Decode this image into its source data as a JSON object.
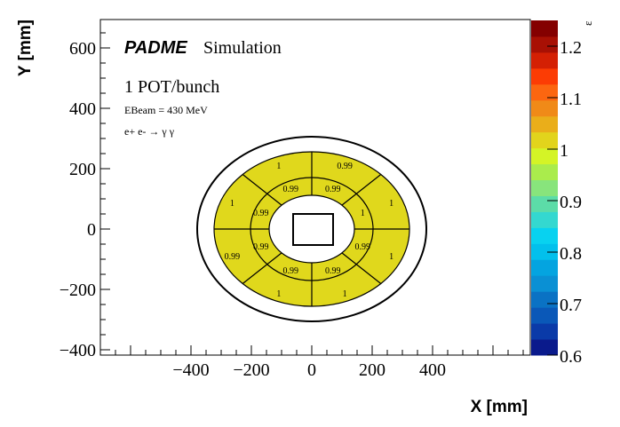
{
  "chart_data": {
    "type": "heatmap",
    "title": "PADME Simulation",
    "brand": "PADME",
    "subtitle": "Simulation",
    "annotations": [
      "1 POT/bunch",
      "EBeam = 430 MeV",
      "e+ e- → γ γ"
    ],
    "xlabel": "X [mm]",
    "ylabel": "Y [mm]",
    "zlabel": "ε",
    "xlim": [
      -700,
      710
    ],
    "ylim": [
      -420,
      700
    ],
    "zlim": [
      0.6,
      1.25
    ],
    "xticks": [
      "−400",
      "−200",
      "0",
      "200",
      "400"
    ],
    "xtick_values": [
      -400,
      -200,
      0,
      200,
      400
    ],
    "yticks": [
      "−400",
      "−200",
      "0",
      "200",
      "400",
      "600"
    ],
    "ytick_values": [
      -400,
      -200,
      0,
      200,
      400,
      600
    ],
    "zticks": [
      "0.6",
      "0.7",
      "0.8",
      "0.9",
      "1",
      "1.1",
      "1.2"
    ],
    "ztick_values": [
      0.6,
      0.7,
      0.8,
      0.9,
      1.0,
      1.1,
      1.2
    ],
    "palette": [
      "#0a1a8c",
      "#0a3aa8",
      "#0a58b8",
      "#0a72c4",
      "#0a90d4",
      "#04a4e0",
      "#02c0ec",
      "#08d2f0",
      "#34d8d0",
      "#5cdca8",
      "#88e47c",
      "#aaec4c",
      "#d4f426",
      "#e2d41c",
      "#eaae1a",
      "#f08a18",
      "#fc6610",
      "#fc3c04",
      "#d42004",
      "#a81004",
      "#840000"
    ],
    "outer_ring": {
      "sectors_from_top_left_clockwise": [
        "1",
        "0.99",
        "1",
        "1",
        "1",
        "1",
        "0.99",
        "1"
      ]
    },
    "inner_ring": {
      "sectors_from_top_left_clockwise": [
        "0.99",
        "0.99",
        "1",
        "0.99",
        "0.99",
        "0.99",
        "0.99",
        "0.99"
      ]
    },
    "cell_color": "#e0d81c"
  }
}
